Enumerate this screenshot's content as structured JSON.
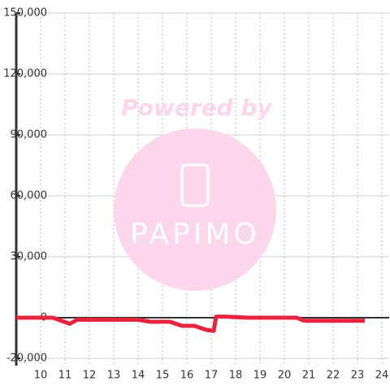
{
  "chart_data": {
    "type": "line",
    "x": [
      9,
      10.5,
      11.2,
      11.5,
      14,
      14.5,
      15.3,
      15.8,
      16.3,
      16.8,
      17.1,
      17.2,
      17.6,
      18.5,
      20.5,
      20.8,
      23.3
    ],
    "series": [
      {
        "color": "#e8243c",
        "values": [
          0,
          0,
          -3000,
          -1000,
          -1000,
          -2000,
          -2000,
          -4000,
          -4000,
          -6000,
          -6500,
          500,
          500,
          0,
          0,
          -1500,
          -1500
        ]
      }
    ],
    "xlim": [
      9,
      24.3
    ],
    "xticks": [
      10,
      11,
      12,
      13,
      14,
      15,
      16,
      17,
      18,
      19,
      20,
      21,
      22,
      23,
      24
    ],
    "ylim": [
      -20000,
      150000
    ],
    "yticks": [
      {
        "value": -20000,
        "label": "-20,000"
      },
      0,
      {
        "value": 30000,
        "label": "30,000"
      },
      {
        "value": 60000,
        "label": "60,000"
      },
      {
        "value": 90000,
        "label": "90,000"
      },
      {
        "value": 120000,
        "label": "120,000"
      },
      {
        "value": 150000,
        "label": "150,000"
      }
    ],
    "grid": true
  },
  "watermark": {
    "line1": "Powered by",
    "line2": "PAPIMO"
  }
}
